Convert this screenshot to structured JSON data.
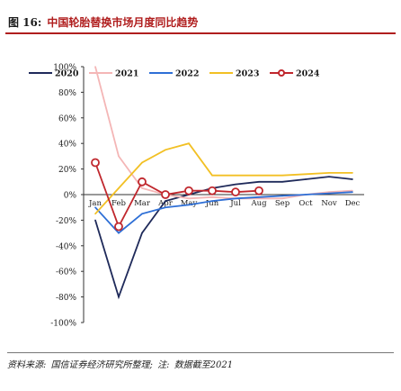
{
  "figure": {
    "number": "图 16:",
    "title": "中国轮胎替换市场月度同比趋势"
  },
  "source": {
    "prefix": "资料来源:",
    "text": "国信证券经济研究所整理;",
    "note": "注:",
    "note_text": "数据截至2021"
  },
  "chart_data": {
    "type": "line",
    "title": "",
    "xlabel": "",
    "ylabel": "",
    "categories": [
      "Jan",
      "Feb",
      "Mar",
      "Apr",
      "May",
      "Jun",
      "Jul",
      "Aug",
      "Sep",
      "Oct",
      "Nov",
      "Dec"
    ],
    "ylim": [
      -100,
      100
    ],
    "ytick_labels": [
      "100%",
      "80%",
      "60%",
      "40%",
      "20%",
      "0%",
      "-20%",
      "-40%",
      "-60%",
      "-80%",
      "-100%"
    ],
    "yticks": [
      100,
      80,
      60,
      40,
      20,
      0,
      -20,
      -40,
      -60,
      -80,
      -100
    ],
    "legend_position": "top",
    "grid": false,
    "colors": {
      "2020": "#1f2a5a",
      "2021": "#f4b6b6",
      "2022": "#2e6fd6",
      "2023": "#f2c024",
      "2024": "#c0272d"
    },
    "series": [
      {
        "name": "2020",
        "values": [
          -20,
          -80,
          -30,
          -5,
          0,
          5,
          8,
          10,
          10,
          12,
          14,
          12
        ]
      },
      {
        "name": "2021",
        "values": [
          100,
          30,
          5,
          0,
          -3,
          -2,
          -3,
          -3,
          -3,
          0,
          2,
          3
        ]
      },
      {
        "name": "2022",
        "values": [
          -10,
          -30,
          -15,
          -10,
          -8,
          -5,
          -3,
          -2,
          -1,
          0,
          1,
          2
        ]
      },
      {
        "name": "2023",
        "values": [
          -15,
          5,
          25,
          35,
          40,
          15,
          15,
          15,
          15,
          16,
          17,
          17
        ]
      },
      {
        "name": "2024",
        "values": [
          25,
          -25,
          10,
          0,
          3,
          3,
          2,
          3,
          null,
          null,
          null,
          null
        ]
      }
    ]
  }
}
